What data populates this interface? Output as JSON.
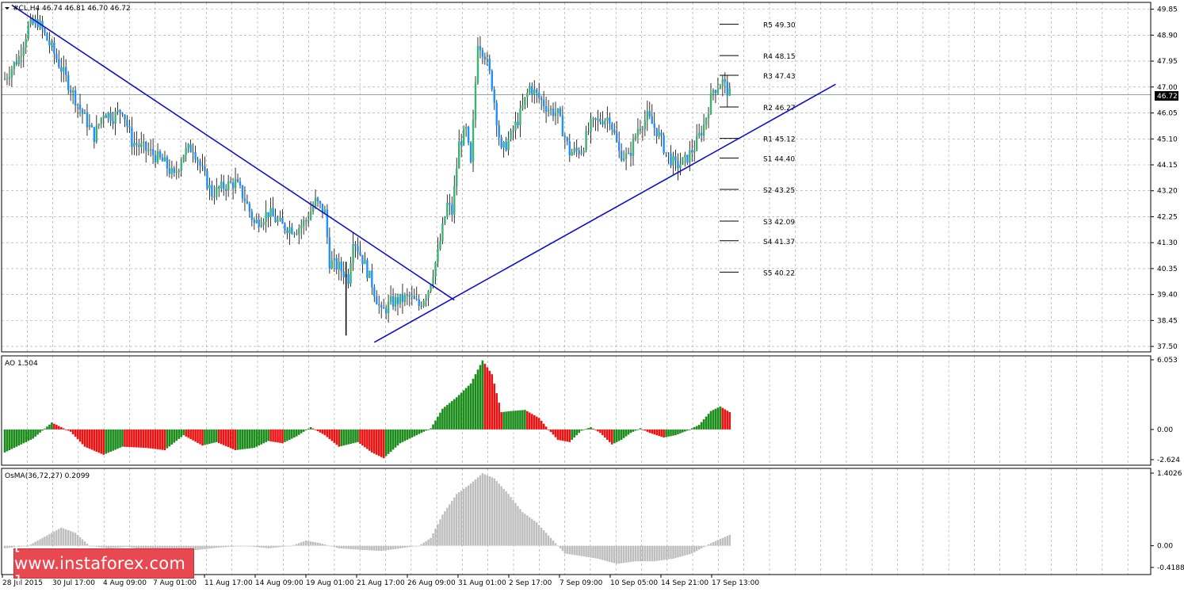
{
  "header": {
    "title": "#CL,H4  46.74 46.81 46.70 46.72",
    "current_price": "46.72"
  },
  "colors": {
    "bull_candle": "#3cb371",
    "bear_candle": "#1e90ff",
    "trendline": "#1010c8",
    "ao_up": "#1a8c1a",
    "ao_down": "#ee1111",
    "osma": "#bdbdbd",
    "grid": "#a0a0a0",
    "watermark_bg": "#e8484f"
  },
  "chart_data": [
    {
      "type": "candlestick",
      "title": "#CL,H4  46.74 46.81 46.70 46.72",
      "ylim": [
        37.3,
        50.1
      ],
      "y_ticks": [
        "49.85",
        "48.90",
        "47.95",
        "47.00",
        "46.05",
        "45.10",
        "44.15",
        "43.20",
        "42.25",
        "41.30",
        "40.35",
        "39.40",
        "38.45",
        "37.50"
      ],
      "x_ticks": [
        "28 Jul 2015",
        "30 Jul 17:00",
        "4 Aug 09:00",
        "7 Aug 01:00",
        "11 Aug 17:00",
        "14 Aug 09:00",
        "19 Aug 01:00",
        "21 Aug 17:00",
        "26 Aug 09:00",
        "31 Aug 01:00",
        "2 Sep 17:00",
        "7 Sep 09:00",
        "10 Sep 05:00",
        "14 Sep 21:00",
        "17 Sep 13:00"
      ],
      "current_price": 46.72,
      "close_path": [
        [
          0,
          47.3
        ],
        [
          6,
          48.1
        ],
        [
          10,
          49.2
        ],
        [
          14,
          49.4
        ],
        [
          20,
          48.4
        ],
        [
          25,
          47.5
        ],
        [
          32,
          46.2
        ],
        [
          38,
          45.2
        ],
        [
          42,
          46.1
        ],
        [
          46,
          45.9
        ],
        [
          50,
          46.2
        ],
        [
          54,
          45.0
        ],
        [
          62,
          44.6
        ],
        [
          68,
          44.2
        ],
        [
          72,
          43.7
        ],
        [
          76,
          44.6
        ],
        [
          80,
          44.8
        ],
        [
          84,
          43.9
        ],
        [
          88,
          43.1
        ],
        [
          94,
          43.4
        ],
        [
          98,
          43.5
        ],
        [
          102,
          42.9
        ],
        [
          106,
          42.0
        ],
        [
          112,
          42.4
        ],
        [
          118,
          41.9
        ],
        [
          124,
          41.8
        ],
        [
          128,
          42.1
        ],
        [
          132,
          42.8
        ],
        [
          136,
          42.4
        ],
        [
          138,
          40.6
        ],
        [
          142,
          40.4
        ],
        [
          146,
          40.0
        ],
        [
          148,
          41.5
        ],
        [
          152,
          40.7
        ],
        [
          156,
          39.8
        ],
        [
          160,
          38.7
        ],
        [
          164,
          39.1
        ],
        [
          168,
          39.2
        ],
        [
          172,
          39.3
        ],
        [
          176,
          39.0
        ],
        [
          180,
          39.6
        ],
        [
          184,
          40.9
        ],
        [
          188,
          42.7
        ],
        [
          190,
          42.4
        ],
        [
          193,
          44.9
        ],
        [
          196,
          45.4
        ],
        [
          198,
          44.1
        ],
        [
          201,
          48.7
        ],
        [
          204,
          48.2
        ],
        [
          207,
          47.1
        ],
        [
          211,
          44.6
        ],
        [
          215,
          45.2
        ],
        [
          219,
          46.0
        ],
        [
          223,
          47.0
        ],
        [
          227,
          46.6
        ],
        [
          231,
          46.2
        ],
        [
          235,
          46.0
        ],
        [
          240,
          44.6
        ],
        [
          245,
          44.7
        ],
        [
          249,
          45.6
        ],
        [
          253,
          45.8
        ],
        [
          257,
          45.9
        ],
        [
          261,
          44.6
        ],
        [
          265,
          44.4
        ],
        [
          269,
          45.5
        ],
        [
          273,
          45.9
        ],
        [
          277,
          45.4
        ],
        [
          281,
          44.6
        ],
        [
          285,
          44.1
        ],
        [
          289,
          44.3
        ],
        [
          293,
          44.8
        ],
        [
          297,
          45.6
        ],
        [
          301,
          46.9
        ],
        [
          305,
          47.2
        ],
        [
          308,
          46.72
        ]
      ],
      "trendlines": [
        {
          "from": [
            3,
            50.0
          ],
          "to": [
            191,
            39.2
          ]
        },
        {
          "from": [
            157,
            37.65
          ],
          "to": [
            353,
            47.1
          ]
        }
      ],
      "pivot_levels": [
        {
          "label": "R5 49.30",
          "value": 49.3
        },
        {
          "label": "R4 48.15",
          "value": 48.15
        },
        {
          "label": "R3 47.43",
          "value": 47.43
        },
        {
          "label": "R2 46.27",
          "value": 46.27
        },
        {
          "label": "R1 45.12",
          "value": 45.12
        },
        {
          "label": "S1 44.40",
          "value": 44.4
        },
        {
          "label": "S2 43.25",
          "value": 43.25
        },
        {
          "label": "S3 42.09",
          "value": 42.09
        },
        {
          "label": "S4 41.37",
          "value": 41.37
        },
        {
          "label": "S5 40.22",
          "value": 40.22
        }
      ],
      "grid": true
    },
    {
      "type": "bar",
      "title": "AO 1.504",
      "ylim": [
        -2.624,
        6.053
      ],
      "y_ticks": [
        "6.053",
        "0.00",
        "-2.624"
      ],
      "profile": [
        [
          0,
          -2.0
        ],
        [
          12,
          -0.8
        ],
        [
          20,
          0.6
        ],
        [
          28,
          -0.2
        ],
        [
          34,
          -1.5
        ],
        [
          42,
          -2.2
        ],
        [
          50,
          -1.5
        ],
        [
          60,
          -1.6
        ],
        [
          68,
          -1.8
        ],
        [
          76,
          -0.5
        ],
        [
          84,
          -1.4
        ],
        [
          90,
          -1.1
        ],
        [
          98,
          -1.8
        ],
        [
          106,
          -1.6
        ],
        [
          112,
          -1.0
        ],
        [
          118,
          -1.2
        ],
        [
          124,
          -0.6
        ],
        [
          130,
          0.2
        ],
        [
          136,
          -0.5
        ],
        [
          142,
          -1.5
        ],
        [
          150,
          -1.1
        ],
        [
          156,
          -2.0
        ],
        [
          161,
          -2.5
        ],
        [
          168,
          -1.2
        ],
        [
          176,
          -0.4
        ],
        [
          181,
          0.1
        ],
        [
          186,
          1.8
        ],
        [
          192,
          2.8
        ],
        [
          198,
          4.0
        ],
        [
          203,
          6.0
        ],
        [
          207,
          4.8
        ],
        [
          211,
          1.5
        ],
        [
          215,
          1.6
        ],
        [
          221,
          1.7
        ],
        [
          227,
          1.0
        ],
        [
          231,
          0.0
        ],
        [
          235,
          -0.9
        ],
        [
          240,
          -1.1
        ],
        [
          245,
          -0.1
        ],
        [
          249,
          0.2
        ],
        [
          253,
          -0.3
        ],
        [
          258,
          -1.3
        ],
        [
          262,
          -0.9
        ],
        [
          266,
          -0.3
        ],
        [
          270,
          0.1
        ],
        [
          274,
          -0.3
        ],
        [
          280,
          -0.7
        ],
        [
          285,
          -0.5
        ],
        [
          290,
          -0.1
        ],
        [
          295,
          0.4
        ],
        [
          300,
          1.6
        ],
        [
          304,
          2.0
        ],
        [
          308,
          1.504
        ]
      ]
    },
    {
      "type": "bar",
      "title": "OsMA(36,72,27) 0.2099",
      "ylim": [
        -0.4188,
        1.4026
      ],
      "y_ticks": [
        "1.4026",
        "0.00",
        "-0.4188"
      ],
      "profile": [
        [
          0,
          -0.05
        ],
        [
          10,
          0.0
        ],
        [
          16,
          0.15
        ],
        [
          24,
          0.35
        ],
        [
          30,
          0.25
        ],
        [
          36,
          0.0
        ],
        [
          44,
          -0.05
        ],
        [
          52,
          -0.02
        ],
        [
          62,
          -0.1
        ],
        [
          72,
          -0.12
        ],
        [
          82,
          -0.08
        ],
        [
          92,
          -0.03
        ],
        [
          102,
          0.0
        ],
        [
          112,
          -0.05
        ],
        [
          122,
          0.0
        ],
        [
          128,
          0.1
        ],
        [
          134,
          0.05
        ],
        [
          142,
          -0.05
        ],
        [
          152,
          -0.08
        ],
        [
          160,
          -0.1
        ],
        [
          168,
          -0.05
        ],
        [
          176,
          0.0
        ],
        [
          181,
          0.15
        ],
        [
          186,
          0.6
        ],
        [
          192,
          1.0
        ],
        [
          198,
          1.2
        ],
        [
          203,
          1.4
        ],
        [
          208,
          1.3
        ],
        [
          214,
          1.0
        ],
        [
          220,
          0.65
        ],
        [
          226,
          0.45
        ],
        [
          232,
          0.15
        ],
        [
          238,
          -0.15
        ],
        [
          245,
          -0.2
        ],
        [
          252,
          -0.25
        ],
        [
          260,
          -0.35
        ],
        [
          268,
          -0.3
        ],
        [
          276,
          -0.3
        ],
        [
          284,
          -0.25
        ],
        [
          292,
          -0.15
        ],
        [
          300,
          0.05
        ],
        [
          305,
          0.15
        ],
        [
          308,
          0.2099
        ]
      ]
    }
  ],
  "watermark": {
    "text": "[ www.instaforex.com ]"
  }
}
